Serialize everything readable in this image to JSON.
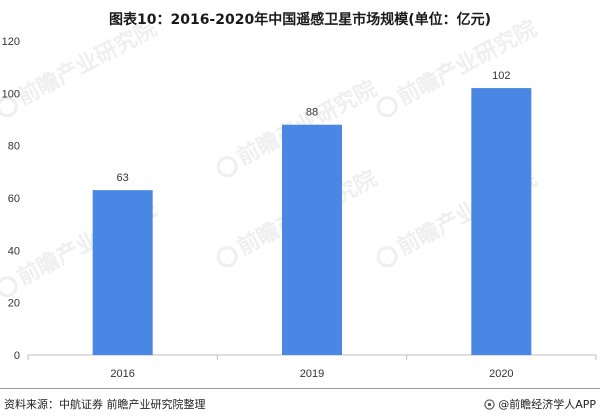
{
  "header": {
    "title": "图表10：2016-2020年中国遥感卫星市场规模(单位：亿元)"
  },
  "footer": {
    "source": "资料来源：中航证券 前瞻产业研究院整理",
    "brand": "@前瞻经济学人APP"
  },
  "colors": {
    "bar": "#4a86e3",
    "axis": "#bfbfbf",
    "text": "#333333"
  },
  "watermark": {
    "text": "前瞻产业研究院",
    "icon": "qianzhan-logo-icon"
  },
  "chart_data": {
    "type": "bar",
    "title": "图表10：2016-2020年中国遥感卫星市场规模(单位：亿元)",
    "categories": [
      "2016",
      "2019",
      "2020"
    ],
    "values": [
      63,
      88,
      102
    ],
    "data_labels": [
      "63",
      "88",
      "102"
    ],
    "ylim": [
      0,
      120
    ],
    "yticks": [
      0,
      20,
      40,
      60,
      80,
      100,
      120
    ],
    "ytick_labels": [
      "0",
      "20",
      "40",
      "60",
      "80",
      "100",
      "120"
    ],
    "xlabel": "",
    "ylabel": "",
    "grid": false,
    "legend": "none"
  }
}
